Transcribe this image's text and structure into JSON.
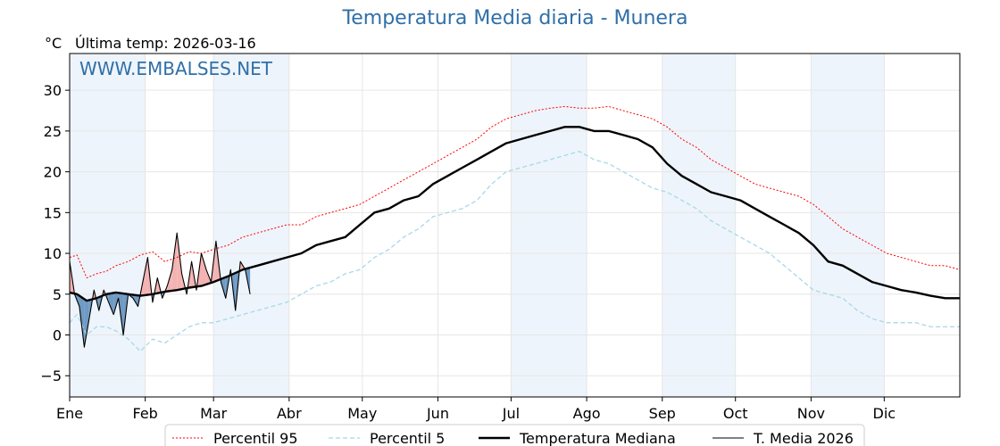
{
  "title": "Temperatura Media diaria - Munera",
  "unit": "°C",
  "last_temp": "Última temp: 2026-03-16",
  "watermark": "WWW.EMBALSES.NET",
  "colors": {
    "title": "#2f6fa8",
    "p95": "#ff0000",
    "p5": "#a8d8e8",
    "median": "#000000",
    "current": "#000000",
    "above_fill": "#f4b3b3",
    "below_fill": "#6f9ac4",
    "band": "#eef4fb"
  },
  "legend": [
    {
      "key": "p95",
      "label": "Percentil 95"
    },
    {
      "key": "p5",
      "label": "Percentil 5"
    },
    {
      "key": "median",
      "label": "Temperatura Mediana"
    },
    {
      "key": "current",
      "label": "T. Media 2026"
    }
  ],
  "chart_data": {
    "type": "line",
    "title": "Temperatura Media diaria - Munera",
    "ylabel": "°C",
    "xlim": [
      1,
      366
    ],
    "ylim": [
      -7.6,
      34.5
    ],
    "y_ticks": [
      -5,
      0,
      5,
      10,
      15,
      20,
      25,
      30
    ],
    "x_ticks": [
      {
        "label": "Ene",
        "day": 1
      },
      {
        "label": "Feb",
        "day": 32
      },
      {
        "label": "Mar",
        "day": 60
      },
      {
        "label": "Abr",
        "day": 91
      },
      {
        "label": "May",
        "day": 121
      },
      {
        "label": "Jun",
        "day": 152
      },
      {
        "label": "Jul",
        "day": 182
      },
      {
        "label": "Ago",
        "day": 213
      },
      {
        "label": "Sep",
        "day": 244
      },
      {
        "label": "Oct",
        "day": 274
      },
      {
        "label": "Nov",
        "day": 305
      },
      {
        "label": "Dic",
        "day": 335
      }
    ],
    "shaded_months": [
      [
        1,
        32
      ],
      [
        60,
        91
      ],
      [
        182,
        213
      ],
      [
        244,
        274
      ],
      [
        305,
        335
      ]
    ],
    "grid": true,
    "legend_position": "bottom",
    "series": [
      {
        "name": "Percentil 95",
        "key": "p95",
        "x": [
          1,
          4,
          8,
          12,
          16,
          20,
          25,
          30,
          35,
          40,
          45,
          50,
          55,
          60,
          66,
          72,
          78,
          84,
          90,
          96,
          102,
          108,
          114,
          120,
          126,
          132,
          138,
          144,
          150,
          156,
          162,
          168,
          174,
          180,
          186,
          192,
          198,
          204,
          210,
          216,
          222,
          228,
          234,
          240,
          246,
          252,
          258,
          264,
          270,
          276,
          282,
          288,
          294,
          300,
          306,
          312,
          318,
          324,
          330,
          336,
          342,
          348,
          354,
          360,
          366
        ],
        "y": [
          9.5,
          9.8,
          7.0,
          7.5,
          7.8,
          8.5,
          9.0,
          9.8,
          10.2,
          9.0,
          9.5,
          10.2,
          10.0,
          10.5,
          11.0,
          12.0,
          12.5,
          13.0,
          13.5,
          13.5,
          14.5,
          15.0,
          15.5,
          16.0,
          17.0,
          18.0,
          19.0,
          20.0,
          21.0,
          22.0,
          23.0,
          24.0,
          25.5,
          26.5,
          27.0,
          27.5,
          27.8,
          28.0,
          27.8,
          27.8,
          28.0,
          27.5,
          27.0,
          26.5,
          25.5,
          24.0,
          23.0,
          21.5,
          20.5,
          19.5,
          18.5,
          18.0,
          17.5,
          17.0,
          16.0,
          14.5,
          13.0,
          12.0,
          11.0,
          10.0,
          9.5,
          9.0,
          8.5,
          8.5,
          8.0
        ]
      },
      {
        "name": "Percentil 5",
        "key": "p5",
        "x": [
          1,
          4,
          8,
          12,
          16,
          20,
          25,
          30,
          35,
          40,
          45,
          50,
          55,
          60,
          66,
          72,
          78,
          84,
          90,
          96,
          102,
          108,
          114,
          120,
          126,
          132,
          138,
          144,
          150,
          156,
          162,
          168,
          174,
          180,
          186,
          192,
          198,
          204,
          210,
          216,
          222,
          228,
          234,
          240,
          246,
          252,
          258,
          264,
          270,
          276,
          282,
          288,
          294,
          300,
          306,
          312,
          318,
          324,
          330,
          336,
          342,
          348,
          354,
          360,
          366
        ],
        "y": [
          1.5,
          2.5,
          0.0,
          1.0,
          1.0,
          0.5,
          -0.5,
          -2.0,
          -0.5,
          -1.0,
          0.0,
          1.0,
          1.5,
          1.5,
          2.0,
          2.5,
          3.0,
          3.5,
          4.0,
          5.0,
          6.0,
          6.5,
          7.5,
          8.0,
          9.5,
          10.5,
          12.0,
          13.0,
          14.5,
          15.0,
          15.5,
          16.5,
          18.5,
          20.0,
          20.5,
          21.0,
          21.5,
          22.0,
          22.5,
          21.5,
          21.0,
          20.0,
          19.0,
          18.0,
          17.5,
          16.5,
          15.5,
          14.0,
          13.0,
          12.0,
          11.0,
          10.0,
          8.5,
          7.0,
          5.5,
          5.0,
          4.5,
          3.0,
          2.0,
          1.5,
          1.5,
          1.5,
          1.0,
          1.0,
          1.0
        ]
      },
      {
        "name": "Temperatura Mediana",
        "key": "median",
        "x": [
          1,
          4,
          8,
          12,
          16,
          20,
          25,
          30,
          35,
          40,
          45,
          50,
          55,
          60,
          66,
          72,
          78,
          84,
          90,
          96,
          102,
          108,
          114,
          120,
          126,
          132,
          138,
          144,
          150,
          156,
          162,
          168,
          174,
          180,
          186,
          192,
          198,
          204,
          210,
          216,
          222,
          228,
          234,
          240,
          246,
          252,
          258,
          264,
          270,
          276,
          282,
          288,
          294,
          300,
          306,
          312,
          318,
          324,
          330,
          336,
          342,
          348,
          354,
          360,
          366
        ],
        "y": [
          5.2,
          5.0,
          4.2,
          4.5,
          5.0,
          5.2,
          5.0,
          4.8,
          5.0,
          5.3,
          5.5,
          5.8,
          6.0,
          6.5,
          7.2,
          8.0,
          8.5,
          9.0,
          9.5,
          10.0,
          11.0,
          11.5,
          12.0,
          13.5,
          15.0,
          15.5,
          16.5,
          17.0,
          18.5,
          19.5,
          20.5,
          21.5,
          22.5,
          23.5,
          24.0,
          24.5,
          25.0,
          25.5,
          25.5,
          25.0,
          25.0,
          24.5,
          24.0,
          23.0,
          21.0,
          19.5,
          18.5,
          17.5,
          17.0,
          16.5,
          15.5,
          14.5,
          13.5,
          12.5,
          11.0,
          9.0,
          8.5,
          7.5,
          6.5,
          6.0,
          5.5,
          5.2,
          4.8,
          4.5,
          4.5
        ]
      },
      {
        "name": "T. Media 2026",
        "key": "current",
        "x": [
          1,
          3,
          5,
          7,
          9,
          11,
          13,
          15,
          17,
          19,
          21,
          23,
          25,
          27,
          29,
          31,
          33,
          35,
          37,
          39,
          41,
          43,
          45,
          47,
          49,
          51,
          53,
          55,
          57,
          59,
          61,
          63,
          65,
          67,
          69,
          71,
          73,
          75
        ],
        "y": [
          9.0,
          5.0,
          3.5,
          -1.5,
          2.0,
          5.5,
          3.0,
          5.5,
          4.0,
          2.5,
          4.5,
          0.0,
          5.0,
          4.5,
          3.5,
          6.5,
          9.5,
          4.0,
          7.0,
          4.5,
          6.0,
          8.0,
          12.5,
          7.5,
          5.0,
          9.0,
          5.5,
          10.0,
          8.0,
          6.5,
          11.5,
          6.5,
          4.5,
          8.0,
          3.0,
          9.0,
          8.0,
          5.0
        ]
      }
    ]
  }
}
